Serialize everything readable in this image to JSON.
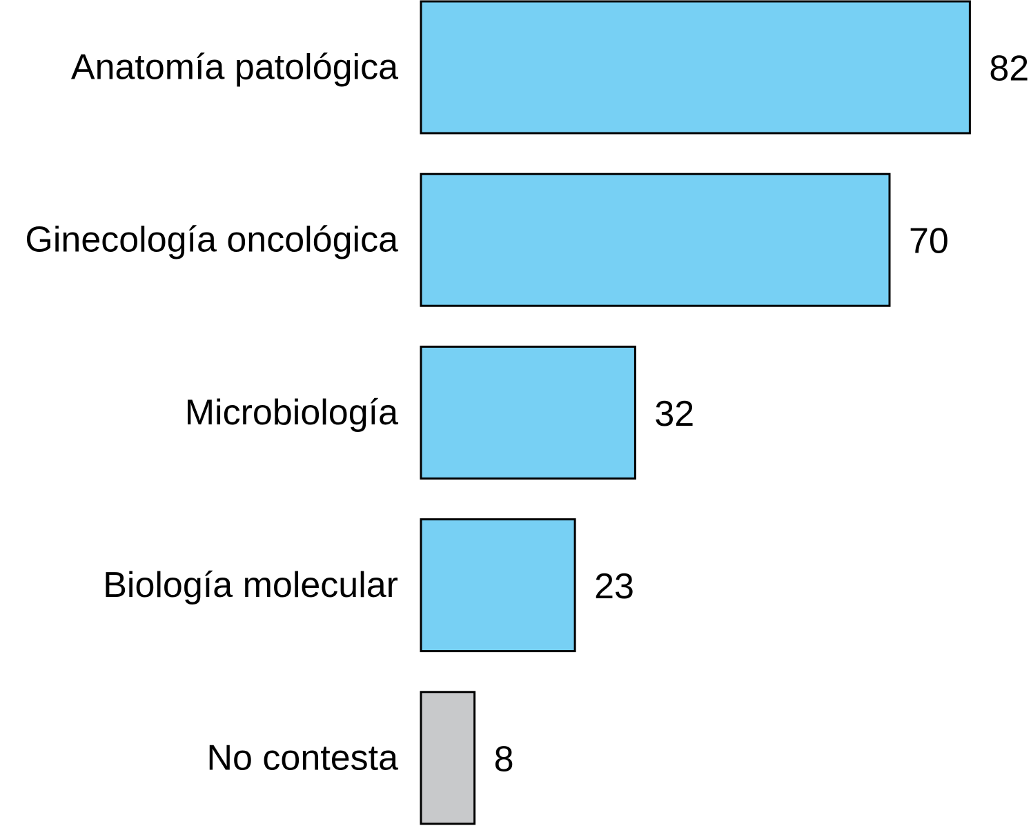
{
  "chart_data": {
    "type": "bar",
    "orientation": "horizontal",
    "categories": [
      "Anatomía patológica",
      "Ginecología oncológica",
      "Microbiología",
      "Biología molecular",
      "No contesta"
    ],
    "values": [
      82,
      70,
      32,
      23,
      8
    ],
    "data_labels": [
      "82",
      "70",
      "32",
      "23",
      "8"
    ],
    "colors": [
      "#77d0f4",
      "#77d0f4",
      "#77d0f4",
      "#77d0f4",
      "#c8c9cb"
    ],
    "xlim": [
      0,
      82
    ],
    "grid": false,
    "legend": "none"
  }
}
